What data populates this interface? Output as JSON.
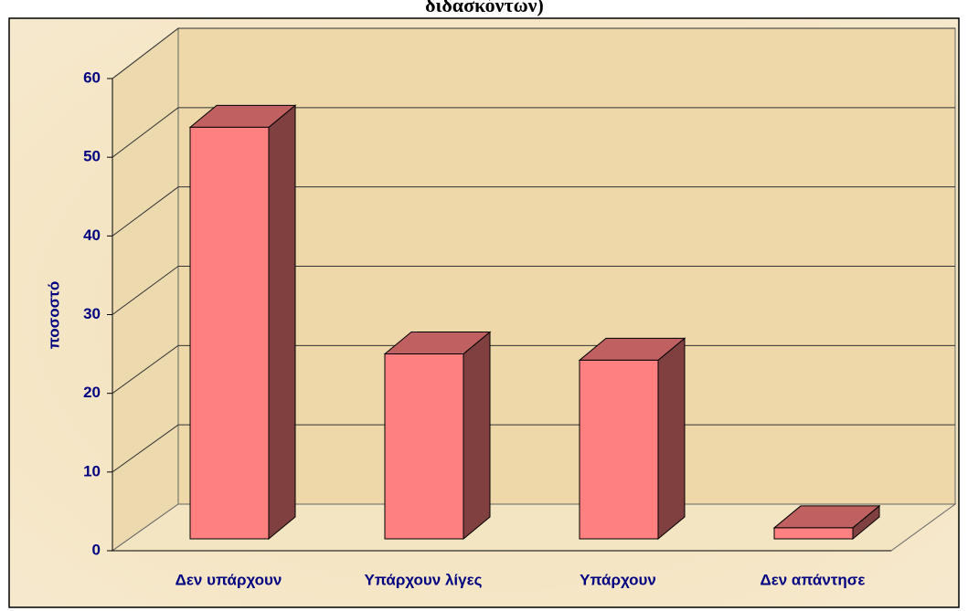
{
  "chart_data": {
    "type": "bar",
    "title": "διδασκόντων)",
    "y_axis_label": "ποσοστό",
    "categories": [
      "Δεν υπάρχουν",
      "Υπάρχουν λίγες",
      "Υπάρχουν",
      "Δεν απάντησε"
    ],
    "values": [
      52.3,
      23.5,
      22.7,
      1.4
    ],
    "color": "#ff8080",
    "ylim": [
      0,
      60
    ],
    "yticks": [
      0,
      10,
      20,
      30,
      40,
      50,
      60
    ],
    "grid": true
  }
}
